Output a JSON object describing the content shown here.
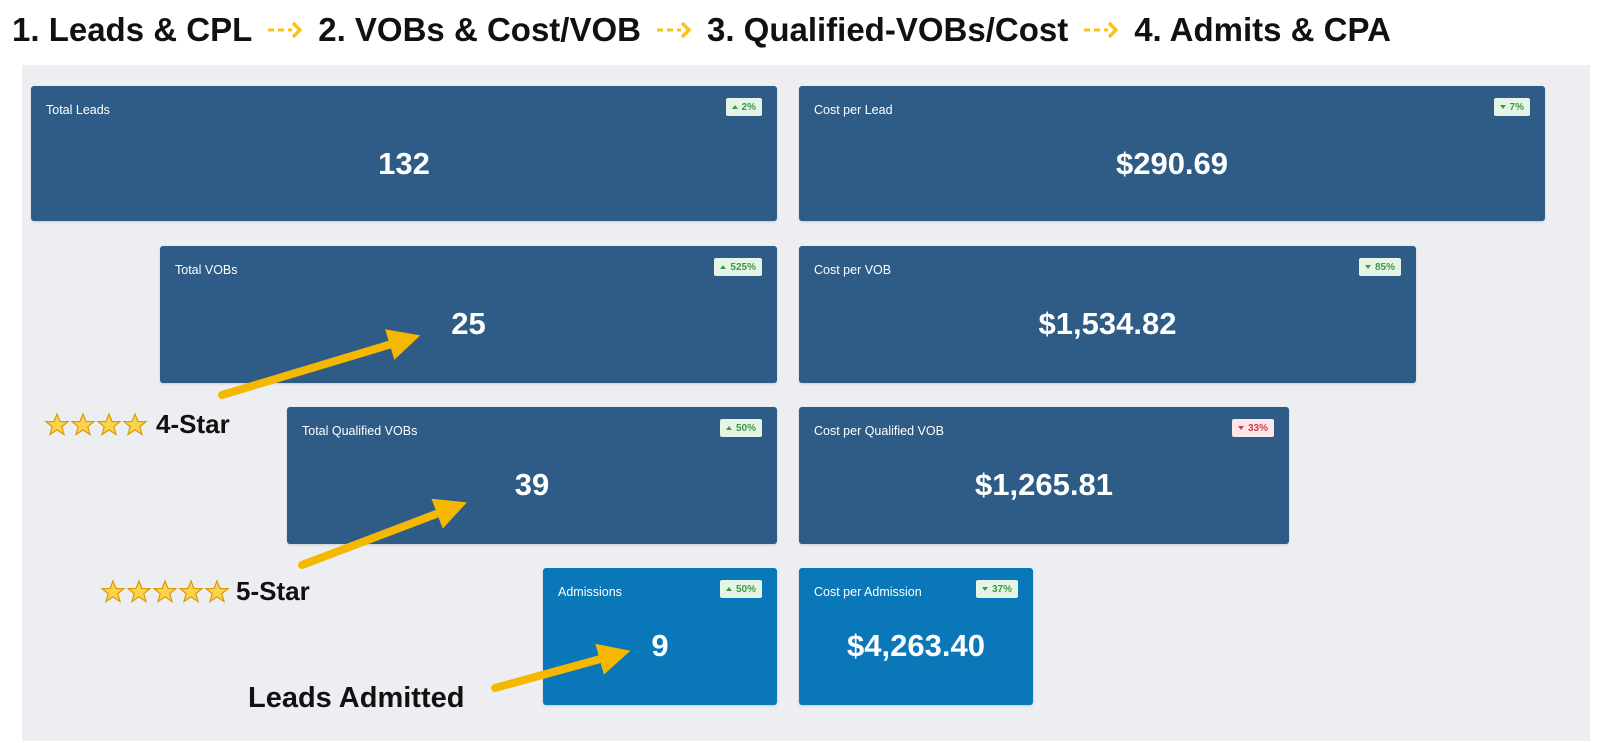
{
  "header": {
    "steps": [
      "1. Leads & CPL",
      "2. VOBs & Cost/VOB",
      "3. Qualified-VOBs/Cost",
      "4. Admits & CPA"
    ]
  },
  "cards": [
    {
      "label": "Total Leads",
      "value": "132",
      "badge": "2%",
      "direction": "up",
      "tone": "good"
    },
    {
      "label": "Cost per Lead",
      "value": "$290.69",
      "badge": "7%",
      "direction": "down",
      "tone": "good"
    },
    {
      "label": "Total VOBs",
      "value": "25",
      "badge": "525%",
      "direction": "up",
      "tone": "good"
    },
    {
      "label": "Cost per VOB",
      "value": "$1,534.82",
      "badge": "85%",
      "direction": "down",
      "tone": "good"
    },
    {
      "label": "Total Qualified VOBs",
      "value": "39",
      "badge": "50%",
      "direction": "up",
      "tone": "good"
    },
    {
      "label": "Cost per Qualified VOB",
      "value": "$1,265.81",
      "badge": "33%",
      "direction": "down",
      "tone": "bad"
    },
    {
      "label": "Admissions",
      "value": "9",
      "badge": "50%",
      "direction": "up",
      "tone": "good",
      "style": "light"
    },
    {
      "label": "Cost per Admission",
      "value": "$4,263.40",
      "badge": "37%",
      "direction": "down",
      "tone": "good",
      "style": "light"
    }
  ],
  "annotations": {
    "four_star": "4-Star",
    "five_star": "5-Star",
    "admitted": "Leads Admitted"
  }
}
